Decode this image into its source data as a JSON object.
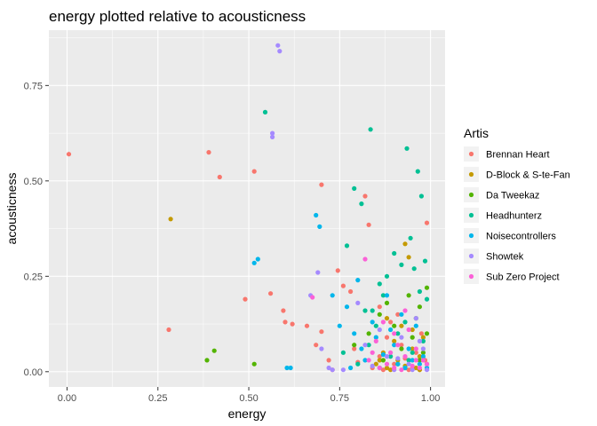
{
  "chart_data": {
    "type": "scatter",
    "title": "energy plotted relative to acousticness",
    "xlabel": "energy",
    "ylabel": "acousticness",
    "xlim": [
      -0.05,
      1.04
    ],
    "ylim": [
      -0.04,
      0.895
    ],
    "x_ticks": [
      0.0,
      0.25,
      0.5,
      0.75,
      1.0
    ],
    "x_tick_labels": [
      "0.00",
      "0.25",
      "0.50",
      "0.75",
      "1.00"
    ],
    "y_ticks": [
      0.0,
      0.25,
      0.5,
      0.75
    ],
    "y_tick_labels": [
      "0.00",
      "0.25",
      "0.50",
      "0.75"
    ],
    "grid": true,
    "legend": {
      "title": "Artis",
      "position": "right"
    },
    "series": [
      {
        "name": "Brennan Heart",
        "color": "#F8766D",
        "points": [
          [
            0.005,
            0.57
          ],
          [
            0.28,
            0.11
          ],
          [
            0.39,
            0.575
          ],
          [
            0.42,
            0.51
          ],
          [
            0.49,
            0.19
          ],
          [
            0.515,
            0.525
          ],
          [
            0.56,
            0.205
          ],
          [
            0.595,
            0.16
          ],
          [
            0.6,
            0.13
          ],
          [
            0.62,
            0.125
          ],
          [
            0.66,
            0.12
          ],
          [
            0.685,
            0.07
          ],
          [
            0.7,
            0.49
          ],
          [
            0.7,
            0.105
          ],
          [
            0.72,
            0.03
          ],
          [
            0.73,
            0.005
          ],
          [
            0.745,
            0.265
          ],
          [
            0.76,
            0.225
          ],
          [
            0.78,
            0.21
          ],
          [
            0.79,
            0.06
          ],
          [
            0.8,
            0.025
          ],
          [
            0.82,
            0.46
          ],
          [
            0.83,
            0.385
          ],
          [
            0.84,
            0.01
          ],
          [
            0.86,
            0.04
          ],
          [
            0.87,
            0.005
          ],
          [
            0.89,
            0.13
          ],
          [
            0.9,
            0.02
          ],
          [
            0.92,
            0.07
          ],
          [
            0.95,
            0.01
          ],
          [
            0.97,
            0.005
          ],
          [
            0.99,
            0.39
          ],
          [
            0.985,
            0.03
          ],
          [
            0.88,
            0.09
          ],
          [
            0.91,
            0.15
          ],
          [
            0.93,
            0.035
          ],
          [
            0.96,
            0.05
          ],
          [
            0.94,
            0.005
          ],
          [
            0.975,
            0.1
          ],
          [
            0.86,
            0.17
          ]
        ]
      },
      {
        "name": "D-Block & S-te-Fan",
        "color": "#C49A00",
        "points": [
          [
            0.285,
            0.4
          ],
          [
            0.85,
            0.02
          ],
          [
            0.87,
            0.05
          ],
          [
            0.88,
            0.01
          ],
          [
            0.9,
            0.08
          ],
          [
            0.91,
            0.03
          ],
          [
            0.92,
            0.12
          ],
          [
            0.93,
            0.335
          ],
          [
            0.94,
            0.3
          ],
          [
            0.95,
            0.06
          ],
          [
            0.96,
            0.01
          ],
          [
            0.97,
            0.04
          ],
          [
            0.98,
            0.09
          ],
          [
            0.99,
            0.02
          ],
          [
            0.89,
            0.005
          ],
          [
            0.93,
            0.015
          ],
          [
            0.86,
            0.03
          ],
          [
            0.95,
            0.11
          ],
          [
            0.97,
            0.005
          ],
          [
            0.88,
            0.14
          ]
        ]
      },
      {
        "name": "Da Tweekaz",
        "color": "#53B400",
        "points": [
          [
            0.385,
            0.03
          ],
          [
            0.405,
            0.055
          ],
          [
            0.515,
            0.02
          ],
          [
            0.79,
            0.07
          ],
          [
            0.83,
            0.1
          ],
          [
            0.86,
            0.15
          ],
          [
            0.88,
            0.18
          ],
          [
            0.9,
            0.12
          ],
          [
            0.92,
            0.06
          ],
          [
            0.94,
            0.2
          ],
          [
            0.95,
            0.09
          ],
          [
            0.96,
            0.14
          ],
          [
            0.97,
            0.17
          ],
          [
            0.98,
            0.05
          ],
          [
            0.99,
            0.22
          ],
          [
            0.99,
            0.1
          ],
          [
            0.87,
            0.03
          ],
          [
            0.91,
            0.02
          ],
          [
            0.93,
            0.01
          ],
          [
            0.97,
            0.03
          ]
        ]
      },
      {
        "name": "Headhunterz",
        "color": "#00C094",
        "points": [
          [
            0.545,
            0.68
          ],
          [
            0.77,
            0.33
          ],
          [
            0.79,
            0.48
          ],
          [
            0.81,
            0.44
          ],
          [
            0.835,
            0.635
          ],
          [
            0.84,
            0.16
          ],
          [
            0.86,
            0.23
          ],
          [
            0.88,
            0.25
          ],
          [
            0.9,
            0.31
          ],
          [
            0.92,
            0.28
          ],
          [
            0.935,
            0.585
          ],
          [
            0.945,
            0.35
          ],
          [
            0.955,
            0.27
          ],
          [
            0.965,
            0.525
          ],
          [
            0.975,
            0.46
          ],
          [
            0.985,
            0.29
          ],
          [
            0.99,
            0.19
          ],
          [
            0.83,
            0.07
          ],
          [
            0.85,
            0.12
          ],
          [
            0.87,
            0.2
          ],
          [
            0.89,
            0.04
          ],
          [
            0.91,
            0.1
          ],
          [
            0.93,
            0.13
          ],
          [
            0.95,
            0.05
          ],
          [
            0.97,
            0.21
          ],
          [
            0.98,
            0.08
          ],
          [
            0.76,
            0.05
          ],
          [
            0.8,
            0.02
          ],
          [
            0.82,
            0.16
          ],
          [
            0.94,
            0.03
          ]
        ]
      },
      {
        "name": "Noisecontrollers",
        "color": "#00B6EB",
        "points": [
          [
            0.515,
            0.285
          ],
          [
            0.525,
            0.295
          ],
          [
            0.605,
            0.01
          ],
          [
            0.615,
            0.01
          ],
          [
            0.685,
            0.41
          ],
          [
            0.695,
            0.38
          ],
          [
            0.73,
            0.2
          ],
          [
            0.75,
            0.12
          ],
          [
            0.77,
            0.17
          ],
          [
            0.79,
            0.1
          ],
          [
            0.8,
            0.24
          ],
          [
            0.81,
            0.06
          ],
          [
            0.82,
            0.03
          ],
          [
            0.84,
            0.13
          ],
          [
            0.85,
            0.09
          ],
          [
            0.86,
            0.01
          ],
          [
            0.87,
            0.045
          ],
          [
            0.88,
            0.2
          ],
          [
            0.89,
            0.11
          ],
          [
            0.9,
            0.07
          ],
          [
            0.91,
            0.02
          ],
          [
            0.92,
            0.15
          ],
          [
            0.93,
            0.01
          ],
          [
            0.94,
            0.06
          ],
          [
            0.95,
            0.03
          ],
          [
            0.96,
            0.12
          ],
          [
            0.97,
            0.02
          ],
          [
            0.98,
            0.04
          ],
          [
            0.99,
            0.01
          ],
          [
            0.78,
            0.01
          ]
        ]
      },
      {
        "name": "Showtek",
        "color": "#A58AFF",
        "points": [
          [
            0.58,
            0.855
          ],
          [
            0.585,
            0.84
          ],
          [
            0.565,
            0.625
          ],
          [
            0.565,
            0.615
          ],
          [
            0.67,
            0.2
          ],
          [
            0.69,
            0.26
          ],
          [
            0.7,
            0.06
          ],
          [
            0.72,
            0.01
          ],
          [
            0.73,
            0.005
          ],
          [
            0.76,
            0.005
          ],
          [
            0.8,
            0.18
          ],
          [
            0.82,
            0.07
          ],
          [
            0.84,
            0.015
          ],
          [
            0.86,
            0.11
          ],
          [
            0.88,
            0.04
          ],
          [
            0.9,
            0.005
          ],
          [
            0.92,
            0.09
          ],
          [
            0.94,
            0.02
          ],
          [
            0.96,
            0.14
          ],
          [
            0.98,
            0.06
          ],
          [
            0.99,
            0.005
          ],
          [
            0.91,
            0.035
          ],
          [
            0.95,
            0.005
          ],
          [
            0.97,
            0.08
          ]
        ]
      },
      {
        "name": "Sub Zero Project",
        "color": "#FB61D7",
        "points": [
          [
            0.675,
            0.195
          ],
          [
            0.82,
            0.295
          ],
          [
            0.83,
            0.03
          ],
          [
            0.85,
            0.08
          ],
          [
            0.86,
            0.01
          ],
          [
            0.87,
            0.13
          ],
          [
            0.88,
            0.02
          ],
          [
            0.89,
            0.05
          ],
          [
            0.9,
            0.01
          ],
          [
            0.91,
            0.07
          ],
          [
            0.92,
            0.005
          ],
          [
            0.93,
            0.04
          ],
          [
            0.94,
            0.11
          ],
          [
            0.95,
            0.015
          ],
          [
            0.96,
            0.06
          ],
          [
            0.97,
            0.01
          ],
          [
            0.98,
            0.03
          ],
          [
            0.99,
            0.02
          ],
          [
            0.9,
            0.1
          ],
          [
            0.93,
            0.16
          ],
          [
            0.96,
            0.03
          ],
          [
            0.84,
            0.05
          ]
        ]
      }
    ]
  }
}
